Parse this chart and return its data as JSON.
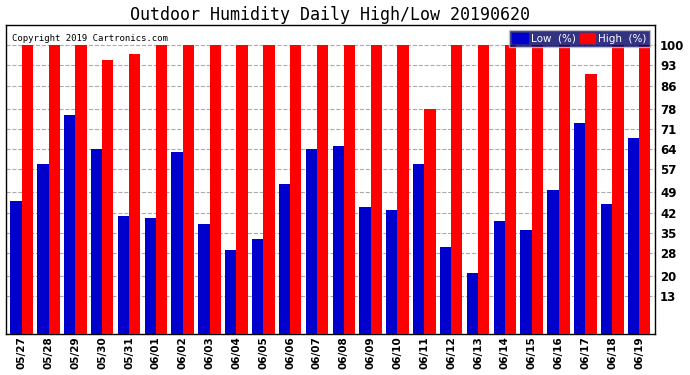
{
  "title": "Outdoor Humidity Daily High/Low 20190620",
  "copyright": "Copyright 2019 Cartronics.com",
  "dates": [
    "05/27",
    "05/28",
    "05/29",
    "05/30",
    "05/31",
    "06/01",
    "06/02",
    "06/03",
    "06/04",
    "06/05",
    "06/06",
    "06/07",
    "06/08",
    "06/09",
    "06/10",
    "06/11",
    "06/12",
    "06/13",
    "06/14",
    "06/15",
    "06/16",
    "06/17",
    "06/18",
    "06/19"
  ],
  "high": [
    100,
    100,
    100,
    95,
    97,
    100,
    100,
    100,
    100,
    100,
    100,
    100,
    100,
    100,
    100,
    78,
    100,
    100,
    100,
    100,
    100,
    90,
    100,
    100
  ],
  "low": [
    46,
    59,
    76,
    64,
    41,
    40,
    63,
    38,
    29,
    33,
    52,
    64,
    65,
    44,
    43,
    59,
    30,
    21,
    39,
    36,
    50,
    73,
    45,
    68
  ],
  "high_color": "#ff0000",
  "low_color": "#0000cc",
  "bg_color": "#ffffff",
  "plot_bg_color": "#ffffff",
  "grid_color": "#aaaaaa",
  "yticks": [
    13,
    20,
    28,
    35,
    42,
    49,
    57,
    64,
    71,
    78,
    86,
    93,
    100
  ],
  "ylim": [
    0,
    107
  ],
  "bar_width": 0.42,
  "title_fontsize": 12,
  "legend_low_label": "Low  (%)",
  "legend_high_label": "High  (%)"
}
